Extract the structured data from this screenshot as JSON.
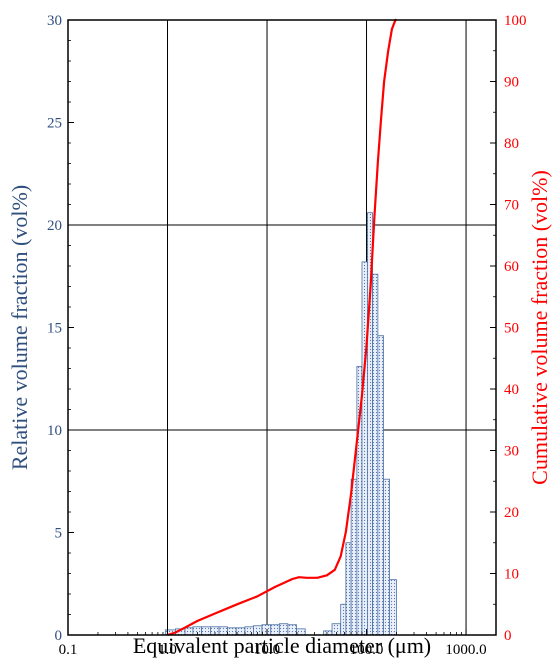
{
  "chart_data": {
    "type": "bar",
    "x_scale": "log",
    "xlim": [
      0.1,
      2000
    ],
    "xlabel": "Equivalent particle diameter (μm)",
    "xticks": [
      {
        "value": 0.1,
        "label": "0.1"
      },
      {
        "value": 1,
        "label": "1.0"
      },
      {
        "value": 10,
        "label": "10.0"
      },
      {
        "value": 100,
        "label": "100.0"
      },
      {
        "value": 1000,
        "label": "1000.0"
      }
    ],
    "y_left": {
      "label": "Relative volume fraction (vol%)",
      "lim": [
        0,
        30
      ],
      "ticks": [
        "0",
        "5",
        "10",
        "15",
        "20",
        "25",
        "30"
      ],
      "color": "#2f4f7f"
    },
    "y_right": {
      "label": "Cumulative volume fraction (vol%)",
      "lim": [
        0,
        100
      ],
      "ticks": [
        "0",
        "10",
        "20",
        "30",
        "40",
        "50",
        "60",
        "70",
        "80",
        "90",
        "100"
      ],
      "color": "#ff0000"
    },
    "grid": true,
    "series": [
      {
        "type": "bar",
        "axis": "left",
        "color": "#4a6fa5",
        "fill": "#dce6f5",
        "bins": [
          {
            "from": 0.95,
            "to": 1.2,
            "value": 0.25
          },
          {
            "from": 1.2,
            "to": 1.5,
            "value": 0.3
          },
          {
            "from": 1.5,
            "to": 1.8,
            "value": 0.35
          },
          {
            "from": 1.8,
            "to": 2.2,
            "value": 0.4
          },
          {
            "from": 2.2,
            "to": 2.7,
            "value": 0.4
          },
          {
            "from": 2.7,
            "to": 3.3,
            "value": 0.4
          },
          {
            "from": 3.3,
            "to": 4.0,
            "value": 0.4
          },
          {
            "from": 4.0,
            "to": 4.9,
            "value": 0.35
          },
          {
            "from": 4.9,
            "to": 6.0,
            "value": 0.35
          },
          {
            "from": 6.0,
            "to": 7.3,
            "value": 0.4
          },
          {
            "from": 7.3,
            "to": 8.9,
            "value": 0.45
          },
          {
            "from": 8.9,
            "to": 10.9,
            "value": 0.5
          },
          {
            "from": 10.9,
            "to": 13.3,
            "value": 0.5
          },
          {
            "from": 13.3,
            "to": 16.2,
            "value": 0.55
          },
          {
            "from": 16.2,
            "to": 19.8,
            "value": 0.5
          },
          {
            "from": 19.8,
            "to": 24.2,
            "value": 0.3
          },
          {
            "from": 37,
            "to": 45,
            "value": 0.2
          },
          {
            "from": 45,
            "to": 55,
            "value": 0.55
          },
          {
            "from": 55,
            "to": 62,
            "value": 1.5
          },
          {
            "from": 62,
            "to": 70,
            "value": 4.5
          },
          {
            "from": 70,
            "to": 80,
            "value": 7.6
          },
          {
            "from": 80,
            "to": 90,
            "value": 13.1
          },
          {
            "from": 90,
            "to": 102,
            "value": 18.2
          },
          {
            "from": 102,
            "to": 115,
            "value": 20.6
          },
          {
            "from": 115,
            "to": 130,
            "value": 17.6
          },
          {
            "from": 130,
            "to": 148,
            "value": 14.6
          },
          {
            "from": 148,
            "to": 170,
            "value": 7.6
          },
          {
            "from": 170,
            "to": 200,
            "value": 2.7
          }
        ]
      },
      {
        "type": "line",
        "axis": "right",
        "color": "#ff0000",
        "points": [
          [
            1.0,
            0
          ],
          [
            1.2,
            0.4
          ],
          [
            1.5,
            1.2
          ],
          [
            2.0,
            2.3
          ],
          [
            3.0,
            3.5
          ],
          [
            5.0,
            5.0
          ],
          [
            8.0,
            6.3
          ],
          [
            12.0,
            7.8
          ],
          [
            18.0,
            9.1
          ],
          [
            21.0,
            9.4
          ],
          [
            25.0,
            9.3
          ],
          [
            32.0,
            9.3
          ],
          [
            40.0,
            9.7
          ],
          [
            48.0,
            10.6
          ],
          [
            55.0,
            12.8
          ],
          [
            62.0,
            16.8
          ],
          [
            70.0,
            23.0
          ],
          [
            80.0,
            31.5
          ],
          [
            90.0,
            39.0
          ],
          [
            100.0,
            47.0
          ],
          [
            110.0,
            57.0
          ],
          [
            120.0,
            68.0
          ],
          [
            130.0,
            77.0
          ],
          [
            140.0,
            84.0
          ],
          [
            150.0,
            90.0
          ],
          [
            165.0,
            95.0
          ],
          [
            180.0,
            98.5
          ],
          [
            195.0,
            100.0
          ],
          [
            200.0,
            100.0
          ]
        ]
      }
    ]
  }
}
